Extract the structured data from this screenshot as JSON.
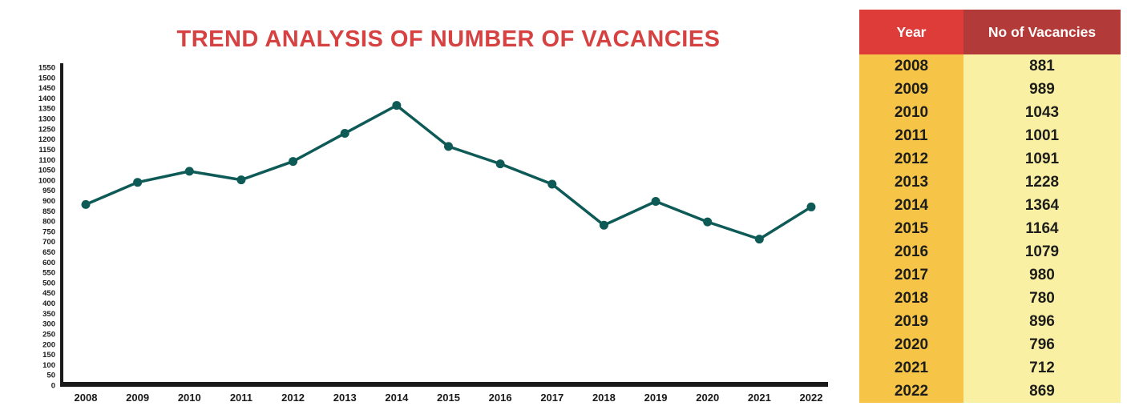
{
  "chart_data": {
    "type": "line",
    "title": "TREND ANALYSIS OF NUMBER OF VACANCIES",
    "categories": [
      "2008",
      "2009",
      "2010",
      "2011",
      "2012",
      "2013",
      "2014",
      "2015",
      "2016",
      "2017",
      "2018",
      "2019",
      "2020",
      "2021",
      "2022"
    ],
    "series": [
      {
        "name": "No of Vacancies",
        "values": [
          881,
          989,
          1043,
          1001,
          1091,
          1228,
          1364,
          1164,
          1079,
          980,
          780,
          896,
          796,
          712,
          869
        ]
      }
    ],
    "xlabel": "",
    "ylabel": "",
    "ylim": [
      0,
      1550
    ],
    "ytick_step": 50,
    "grid": false,
    "legend": false,
    "marker": "circle"
  },
  "table": {
    "headers": [
      "Year",
      "No of Vacancies"
    ],
    "rows": [
      {
        "year": "2008",
        "vacancies": "881"
      },
      {
        "year": "2009",
        "vacancies": "989"
      },
      {
        "year": "2010",
        "vacancies": "1043"
      },
      {
        "year": "2011",
        "vacancies": "1001"
      },
      {
        "year": "2012",
        "vacancies": "1091"
      },
      {
        "year": "2013",
        "vacancies": "1228"
      },
      {
        "year": "2014",
        "vacancies": "1364"
      },
      {
        "year": "2015",
        "vacancies": "1164"
      },
      {
        "year": "2016",
        "vacancies": "1079"
      },
      {
        "year": "2017",
        "vacancies": "980"
      },
      {
        "year": "2018",
        "vacancies": "780"
      },
      {
        "year": "2019",
        "vacancies": "896"
      },
      {
        "year": "2020",
        "vacancies": "796"
      },
      {
        "year": "2021",
        "vacancies": "712"
      },
      {
        "year": "2022",
        "vacancies": "869"
      }
    ]
  },
  "colors": {
    "title_red": "#d64141",
    "header_year_bg": "#dd3c38",
    "header_vacancies_bg": "#b23a38",
    "header_text": "#ffffff",
    "year_column_bg": "#f6c548",
    "vacancies_column_bg": "#faf0a3",
    "table_text": "#1d1d1b",
    "axis_color": "#1a1a1a",
    "line_color": "#0d5a57"
  }
}
